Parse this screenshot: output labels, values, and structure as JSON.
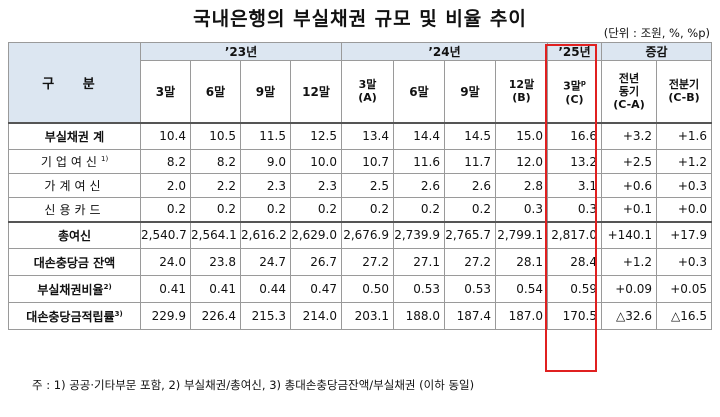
{
  "title": "국내은행의 부실채권 규모 및 비율 추이",
  "unit": "(단위 : 조원, %, %p)",
  "header": {
    "gubun": "구 분",
    "year23": "’23년",
    "year24": "’24년",
    "year25": "’25년",
    "change": "증감",
    "cols23": [
      "3말",
      "6말",
      "9말",
      "12말"
    ],
    "cols24": [
      "3말",
      "6말",
      "9말",
      "12말"
    ],
    "col24_sub_a": "(A)",
    "col24_sub_b": "(B)",
    "col25": "3말",
    "col25_sup": "p",
    "col25_sub": "(C)",
    "yoy_l1": "전년",
    "yoy_l2": "동기",
    "yoy_l3": "(C-A)",
    "qoq_l1": "전분기",
    "qoq_l2": "(C-B)"
  },
  "rows": [
    {
      "label": "부실채권 계",
      "sup": "",
      "values": [
        "10.4",
        "10.5",
        "11.5",
        "12.5",
        "13.4",
        "14.4",
        "14.5",
        "15.0",
        "16.6",
        "+3.2",
        "+1.6"
      ]
    },
    {
      "label": "기업여신",
      "sup": "1)",
      "values": [
        "8.2",
        "8.2",
        "9.0",
        "10.0",
        "10.7",
        "11.6",
        "11.7",
        "12.0",
        "13.2",
        "+2.5",
        "+1.2"
      ]
    },
    {
      "label": "가계여신",
      "sup": "",
      "values": [
        "2.0",
        "2.2",
        "2.3",
        "2.3",
        "2.5",
        "2.6",
        "2.6",
        "2.8",
        "3.1",
        "+0.6",
        "+0.3"
      ]
    },
    {
      "label": "신용카드",
      "sup": "",
      "values": [
        "0.2",
        "0.2",
        "0.2",
        "0.2",
        "0.2",
        "0.2",
        "0.2",
        "0.3",
        "0.3",
        "+0.1",
        "+0.0"
      ]
    },
    {
      "label": "총여신",
      "sup": "",
      "values": [
        "2,540.7",
        "2,564.1",
        "2,616.2",
        "2,629.0",
        "2,676.9",
        "2,739.9",
        "2,765.7",
        "2,799.1",
        "2,817.0",
        "+140.1",
        "+17.9"
      ]
    },
    {
      "label": "대손충당금 잔액",
      "sup": "",
      "values": [
        "24.0",
        "23.8",
        "24.7",
        "26.7",
        "27.2",
        "27.1",
        "27.2",
        "28.1",
        "28.4",
        "+1.2",
        "+0.3"
      ]
    },
    {
      "label": "부실채권비율",
      "sup": "2)",
      "values": [
        "0.41",
        "0.41",
        "0.44",
        "0.47",
        "0.50",
        "0.53",
        "0.53",
        "0.54",
        "0.59",
        "+0.09",
        "+0.05"
      ]
    },
    {
      "label": "대손충당금적립률",
      "sup": "3)",
      "values": [
        "229.9",
        "226.4",
        "215.3",
        "214.0",
        "203.1",
        "188.0",
        "187.4",
        "187.0",
        "170.5",
        "△32.6",
        "△16.5"
      ]
    }
  ],
  "note": "주 : 1) 공공·기타부문 포함,   2) 부실채권/총여신,   3) 총대손충당금잔액/부실채권 (이하 동일)",
  "colors": {
    "header_bg": "#dce6f1",
    "highlight": "#e02020"
  }
}
